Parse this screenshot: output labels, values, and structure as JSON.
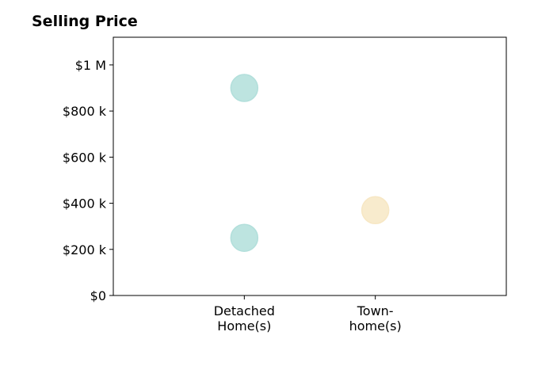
{
  "chart_data": {
    "type": "scatter",
    "title": "Selling Price",
    "xlabel": "",
    "ylabel": "",
    "categories": [
      [
        "Detached",
        "Home(s)"
      ],
      [
        "Town-",
        "home(s)"
      ]
    ],
    "xlim": [
      -1,
      2
    ],
    "ylim": [
      0,
      1120000
    ],
    "y_ticks": [
      {
        "value": 0,
        "label": "$0"
      },
      {
        "value": 200000,
        "label": "$200 k"
      },
      {
        "value": 400000,
        "label": "$400 k"
      },
      {
        "value": 600000,
        "label": "$600 k"
      },
      {
        "value": 800000,
        "label": "$800 k"
      },
      {
        "value": 1000000,
        "label": "$1 M"
      }
    ],
    "points": [
      {
        "category": 0,
        "value": 900000,
        "color": "#b2dfdb"
      },
      {
        "category": 0,
        "value": 250000,
        "color": "#b2dfdb"
      },
      {
        "category": 1,
        "value": 370000,
        "color": "#f7e7c4"
      }
    ],
    "grid": false,
    "legend": "none"
  }
}
